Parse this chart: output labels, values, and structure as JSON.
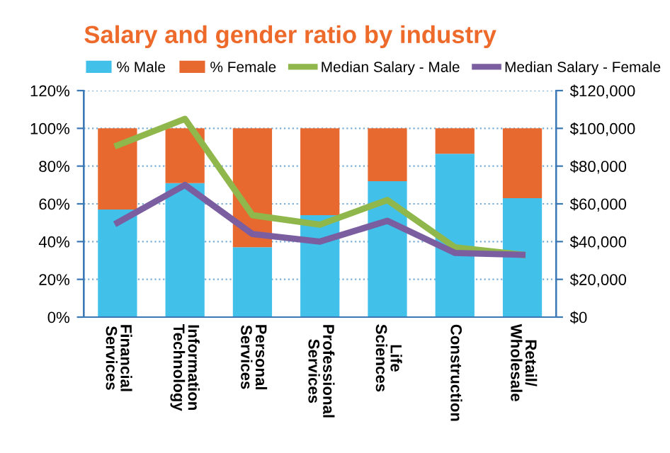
{
  "chart_data": {
    "type": "bar",
    "title": "Salary and gender ratio by industry",
    "categories": [
      "Financial\nServices",
      "Information\nTechnology",
      "Personal\nServices",
      "Professional\nServices",
      "Life\nSciences",
      "Construction",
      "Retail/\nWholesale"
    ],
    "stacked": true,
    "series": [
      {
        "name": "% Male",
        "color": "#41c0ea",
        "values": [
          57,
          71,
          37,
          54,
          72,
          86.5,
          63
        ]
      },
      {
        "name": "% Female",
        "color": "#e8692f",
        "values": [
          43,
          29,
          63,
          46,
          28,
          13.5,
          37
        ]
      },
      {
        "name": "Median Salary - Male",
        "type": "line",
        "axis": "y2",
        "color": "#8fb74b",
        "values": [
          91000,
          105000,
          54000,
          49000,
          62000,
          37000,
          33000
        ]
      },
      {
        "name": "Median Salary - Female",
        "type": "line",
        "axis": "y2",
        "color": "#7a5ea0",
        "values": [
          50000,
          70000,
          44000,
          40000,
          51000,
          34000,
          33000
        ]
      }
    ],
    "ylim": [
      0,
      120
    ],
    "yticks": [
      {
        "value": 0,
        "label": "0%"
      },
      {
        "value": 20,
        "label": "20%"
      },
      {
        "value": 40,
        "label": "40%"
      },
      {
        "value": 60,
        "label": "60%"
      },
      {
        "value": 80,
        "label": "80%"
      },
      {
        "value": 100,
        "label": "100%"
      },
      {
        "value": 120,
        "label": "120%"
      }
    ],
    "y2lim": [
      0,
      120000
    ],
    "y2ticks": [
      {
        "value": 0,
        "label": "$0"
      },
      {
        "value": 20000,
        "label": "$20,000"
      },
      {
        "value": 40000,
        "label": "$40,000"
      },
      {
        "value": 60000,
        "label": "$60,000"
      },
      {
        "value": 80000,
        "label": "$80,000"
      },
      {
        "value": 100000,
        "label": "$100,000"
      },
      {
        "value": 120000,
        "label": "$120,000"
      }
    ],
    "grid": "y",
    "legend": "top",
    "line_style": "solid",
    "marker": "none"
  }
}
